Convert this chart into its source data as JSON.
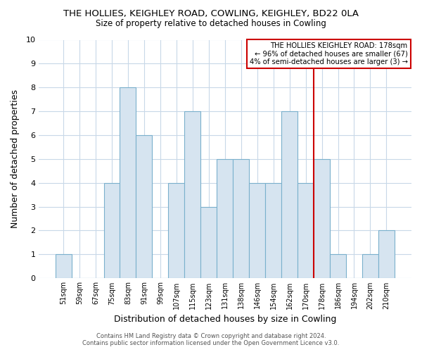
{
  "title": "THE HOLLIES, KEIGHLEY ROAD, COWLING, KEIGHLEY, BD22 0LA",
  "subtitle": "Size of property relative to detached houses in Cowling",
  "xlabel": "Distribution of detached houses by size in Cowling",
  "ylabel": "Number of detached properties",
  "categories": [
    "51sqm",
    "59sqm",
    "67sqm",
    "75sqm",
    "83sqm",
    "91sqm",
    "99sqm",
    "107sqm",
    "115sqm",
    "123sqm",
    "131sqm",
    "138sqm",
    "146sqm",
    "154sqm",
    "162sqm",
    "170sqm",
    "178sqm",
    "186sqm",
    "194sqm",
    "202sqm",
    "210sqm"
  ],
  "values": [
    1,
    0,
    0,
    4,
    8,
    6,
    0,
    4,
    7,
    3,
    5,
    5,
    4,
    4,
    7,
    4,
    5,
    1,
    0,
    1,
    2
  ],
  "bar_color": "#d6e4f0",
  "bar_edge_color": "#7ab0cc",
  "ref_line_color": "#cc0000",
  "ref_line_index": 16,
  "ylim": [
    0,
    10
  ],
  "yticks": [
    0,
    1,
    2,
    3,
    4,
    5,
    6,
    7,
    8,
    9,
    10
  ],
  "grid_color": "#c8d8e8",
  "background_color": "#ffffff",
  "box_text_line1": "THE HOLLIES KEIGHLEY ROAD: 178sqm",
  "box_text_line2": "← 96% of detached houses are smaller (67)",
  "box_text_line3": "4% of semi-detached houses are larger (3) →",
  "box_edge_color": "#cc0000",
  "footer_line1": "Contains HM Land Registry data © Crown copyright and database right 2024.",
  "footer_line2": "Contains public sector information licensed under the Open Government Licence v3.0."
}
